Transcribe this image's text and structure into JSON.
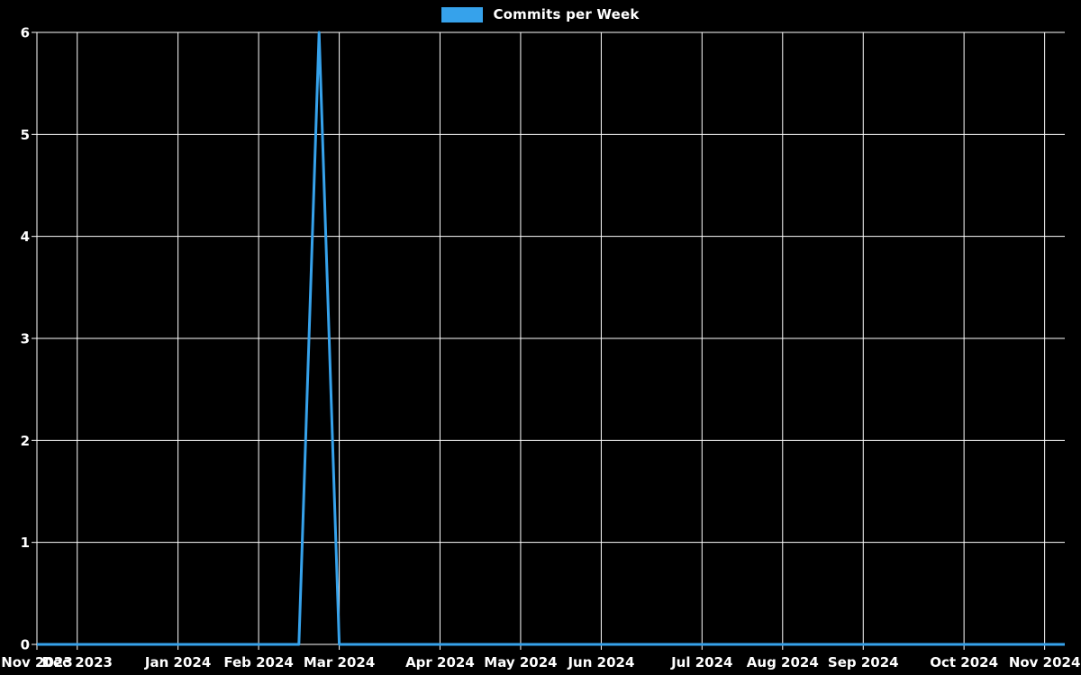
{
  "legend": {
    "label": "Commits per Week",
    "swatch_color": "#36a2eb"
  },
  "chart_data": {
    "type": "line",
    "title": "",
    "legend_entries": [
      "Commits per Week"
    ],
    "line_color": "#36a2eb",
    "background_color": "#000000",
    "grid_color": "#ffffff",
    "text_color": "#ffffff",
    "grid": true,
    "legend_position": "top-center",
    "ylabel": "",
    "xlabel": "",
    "ylim": [
      0,
      6
    ],
    "y_ticks": [
      0,
      1,
      2,
      3,
      4,
      5,
      6
    ],
    "x_axis_description": "weekly data points from Nov 2023 to Nov 2024",
    "x_ticks": [
      {
        "label": "Nov 2023",
        "week": 0
      },
      {
        "label": "Dec 2023",
        "week": 2
      },
      {
        "label": "Jan 2024",
        "week": 7
      },
      {
        "label": "Feb 2024",
        "week": 11
      },
      {
        "label": "Mar 2024",
        "week": 15
      },
      {
        "label": "Apr 2024",
        "week": 20
      },
      {
        "label": "May 2024",
        "week": 24
      },
      {
        "label": "Jun 2024",
        "week": 28
      },
      {
        "label": "Jul 2024",
        "week": 33
      },
      {
        "label": "Aug 2024",
        "week": 37
      },
      {
        "label": "Sep 2024",
        "week": 41
      },
      {
        "label": "Oct 2024",
        "week": 46
      },
      {
        "label": "Nov 2024",
        "week": 50
      }
    ],
    "series": [
      {
        "name": "Commits per Week",
        "values": [
          0,
          0,
          0,
          0,
          0,
          0,
          0,
          0,
          0,
          0,
          0,
          0,
          0,
          0,
          6,
          0,
          0,
          0,
          0,
          0,
          0,
          0,
          0,
          0,
          0,
          0,
          0,
          0,
          0,
          0,
          0,
          0,
          0,
          0,
          0,
          0,
          0,
          0,
          0,
          0,
          0,
          0,
          0,
          0,
          0,
          0,
          0,
          0,
          0,
          0,
          0,
          0
        ]
      }
    ],
    "peak": {
      "value": 6,
      "week_index": 14,
      "approx_period": "late February 2024"
    }
  }
}
